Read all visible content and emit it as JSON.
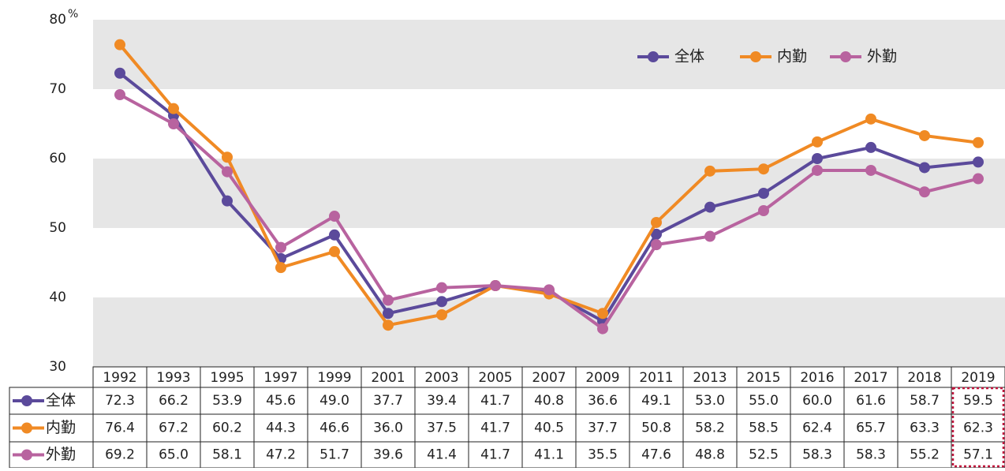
{
  "chart_data": {
    "type": "line",
    "y_unit": "%",
    "categories": [
      "1992",
      "1993",
      "1995",
      "1997",
      "1999",
      "2001",
      "2003",
      "2005",
      "2007",
      "2009",
      "2011",
      "2013",
      "2015",
      "2016",
      "2017",
      "2018",
      "2019"
    ],
    "series": [
      {
        "name": "全体",
        "color": "#5b4a9b",
        "values": [
          72.3,
          66.2,
          53.9,
          45.6,
          49.0,
          37.7,
          39.4,
          41.7,
          40.8,
          36.6,
          49.1,
          53.0,
          55.0,
          60.0,
          61.6,
          58.7,
          59.5
        ],
        "value_labels": [
          "72.3",
          "66.2",
          "53.9",
          "45.6",
          "49.0",
          "37.7",
          "39.4",
          "41.7",
          "40.8",
          "36.6",
          "49.1",
          "53.0",
          "55.0",
          "60.0",
          "61.6",
          "58.7",
          "59.5"
        ]
      },
      {
        "name": "内勤",
        "color": "#f08a24",
        "values": [
          76.4,
          67.2,
          60.2,
          44.3,
          46.6,
          36.0,
          37.5,
          41.7,
          40.5,
          37.7,
          50.8,
          58.2,
          58.5,
          62.4,
          65.7,
          63.3,
          62.3
        ],
        "value_labels": [
          "76.4",
          "67.2",
          "60.2",
          "44.3",
          "46.6",
          "36.0",
          "37.5",
          "41.7",
          "40.5",
          "37.7",
          "50.8",
          "58.2",
          "58.5",
          "62.4",
          "65.7",
          "63.3",
          "62.3"
        ]
      },
      {
        "name": "外勤",
        "color": "#b8639f",
        "values": [
          69.2,
          65.0,
          58.1,
          47.2,
          51.7,
          39.6,
          41.4,
          41.7,
          41.1,
          35.5,
          47.6,
          48.8,
          52.5,
          58.3,
          58.3,
          55.2,
          57.1
        ],
        "value_labels": [
          "69.2",
          "65.0",
          "58.1",
          "47.2",
          "51.7",
          "39.6",
          "41.4",
          "41.7",
          "41.1",
          "35.5",
          "47.6",
          "48.8",
          "52.5",
          "58.3",
          "58.3",
          "55.2",
          "57.1"
        ]
      }
    ],
    "ylim": [
      30,
      80
    ],
    "yticks": [
      30,
      40,
      50,
      60,
      70,
      80
    ],
    "grid": true,
    "legend": "upper right"
  }
}
